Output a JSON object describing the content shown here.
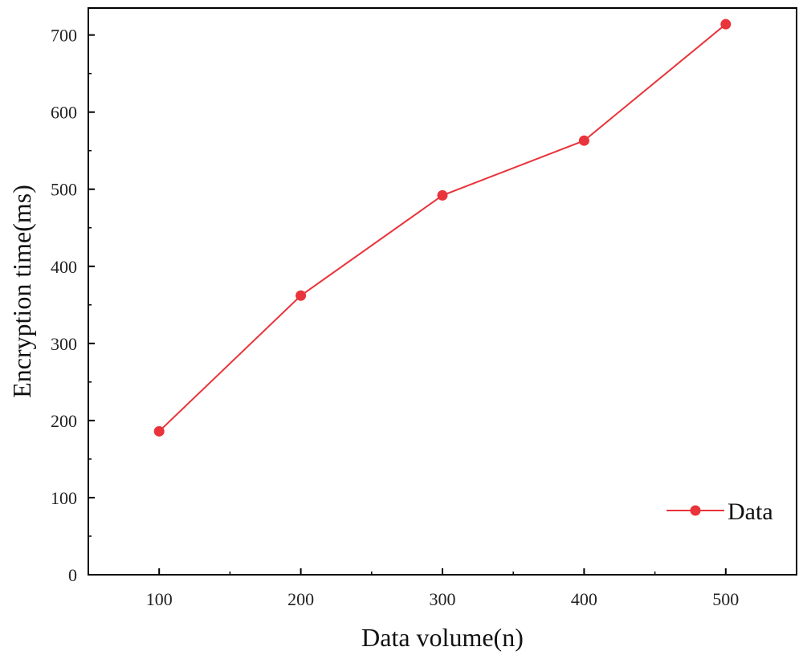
{
  "chart_data": {
    "type": "line",
    "title": "",
    "xlabel": "Data volume(n)",
    "ylabel": "Encryption time(ms)",
    "x": [
      100,
      200,
      300,
      400,
      500
    ],
    "series": [
      {
        "name": "Data",
        "values": [
          186,
          362,
          492,
          563,
          714
        ]
      }
    ],
    "xlim": [
      50,
      550
    ],
    "ylim": [
      0,
      735
    ],
    "xticks": [
      100,
      200,
      300,
      400,
      500
    ],
    "yticks": [
      0,
      100,
      200,
      300,
      400,
      500,
      600,
      700
    ],
    "grid": false,
    "legend_position": "bottom-right",
    "series_color": "#e8343a"
  }
}
